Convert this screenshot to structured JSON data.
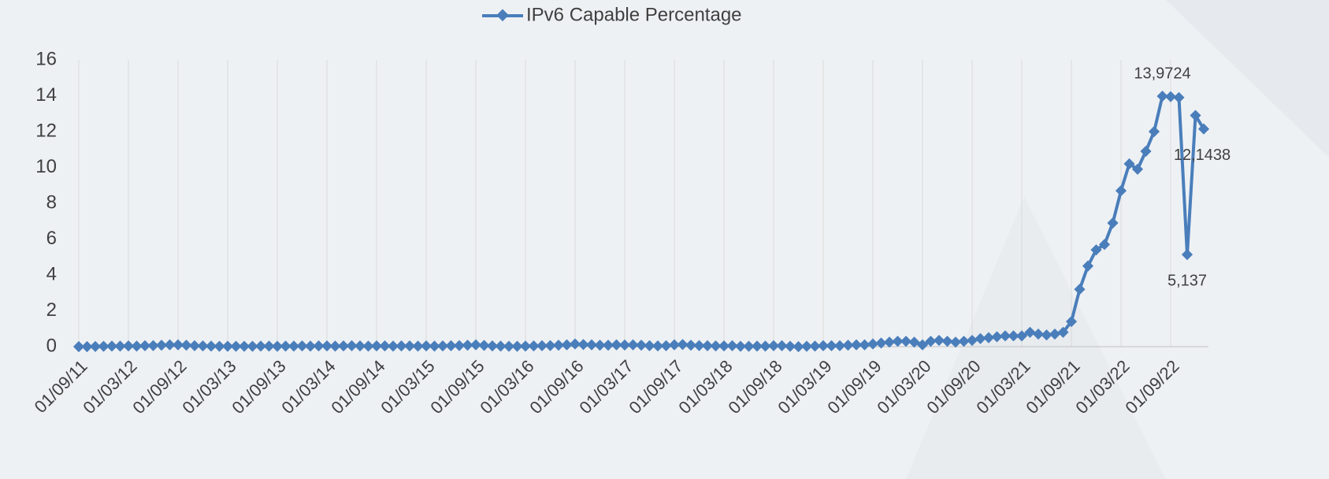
{
  "chart_data": {
    "type": "line",
    "categories": [
      "01/09/11",
      null,
      null,
      null,
      null,
      null,
      "01/03/12",
      null,
      null,
      null,
      null,
      null,
      "01/09/12",
      null,
      null,
      null,
      null,
      null,
      "01/03/13",
      null,
      null,
      null,
      null,
      null,
      "01/09/13",
      null,
      null,
      null,
      null,
      null,
      "01/03/14",
      null,
      null,
      null,
      null,
      null,
      "01/09/14",
      null,
      null,
      null,
      null,
      null,
      "01/03/15",
      null,
      null,
      null,
      null,
      null,
      "01/09/15",
      null,
      null,
      null,
      null,
      null,
      "01/03/16",
      null,
      null,
      null,
      null,
      null,
      "01/09/16",
      null,
      null,
      null,
      null,
      null,
      "01/03/17",
      null,
      null,
      null,
      null,
      null,
      "01/09/17",
      null,
      null,
      null,
      null,
      null,
      "01/03/18",
      null,
      null,
      null,
      null,
      null,
      "01/09/18",
      null,
      null,
      null,
      null,
      null,
      "01/03/19",
      null,
      null,
      null,
      null,
      null,
      "01/09/19",
      null,
      null,
      null,
      null,
      null,
      "01/03/20",
      null,
      null,
      null,
      null,
      null,
      "01/09/20",
      null,
      null,
      null,
      null,
      null,
      "01/03/21",
      null,
      null,
      null,
      null,
      null,
      "01/09/21",
      null,
      null,
      null,
      null,
      null,
      "01/03/22",
      null,
      null,
      null,
      null,
      null,
      "01/09/22",
      null,
      null,
      null,
      null
    ],
    "series": [
      {
        "name": "IPv6 Capable Percentage",
        "color": "#4a7ebb",
        "values": [
          0,
          0,
          0.01,
          0.02,
          0.03,
          0.03,
          0.04,
          0.03,
          0.05,
          0.06,
          0.08,
          0.1,
          0.1,
          0.08,
          0.05,
          0.04,
          0.03,
          0.02,
          0.02,
          0.02,
          0.02,
          0.02,
          0.03,
          0.03,
          0.02,
          0.03,
          0.03,
          0.04,
          0.03,
          0.04,
          0.04,
          0.03,
          0.04,
          0.05,
          0.04,
          0.03,
          0.04,
          0.04,
          0.03,
          0.04,
          0.04,
          0.03,
          0.04,
          0.03,
          0.04,
          0.05,
          0.06,
          0.08,
          0.1,
          0.07,
          0.04,
          0.03,
          0.02,
          0.02,
          0.03,
          0.04,
          0.05,
          0.06,
          0.08,
          0.1,
          0.15,
          0.12,
          0.1,
          0.08,
          0.08,
          0.1,
          0.09,
          0.1,
          0.08,
          0.05,
          0.04,
          0.05,
          0.1,
          0.12,
          0.08,
          0.06,
          0.05,
          0.04,
          0.04,
          0.05,
          0.02,
          0.02,
          0.03,
          0.03,
          0.05,
          0.05,
          0.02,
          0,
          0.02,
          0.03,
          0.05,
          0.05,
          0.05,
          0.08,
          0.1,
          0.1,
          0.15,
          0.2,
          0.25,
          0.3,
          0.3,
          0.25,
          0.1,
          0.3,
          0.35,
          0.3,
          0.25,
          0.3,
          0.35,
          0.45,
          0.5,
          0.55,
          0.6,
          0.6,
          0.6,
          0.8,
          0.7,
          0.65,
          0.7,
          0.8,
          1.4,
          3.2,
          4.5,
          5.4,
          5.7,
          6.9,
          8.7,
          10.2,
          9.9,
          10.9,
          12.0,
          13.9724,
          13.95,
          13.9,
          5.137,
          12.9,
          12.1438
        ],
        "value_labels": [
          null,
          null,
          null,
          null,
          null,
          null,
          null,
          null,
          null,
          null,
          null,
          null,
          null,
          null,
          null,
          null,
          null,
          null,
          null,
          null,
          null,
          null,
          null,
          null,
          null,
          null,
          null,
          null,
          null,
          null,
          null,
          null,
          null,
          null,
          null,
          null,
          null,
          null,
          null,
          null,
          null,
          null,
          null,
          null,
          null,
          null,
          null,
          null,
          null,
          null,
          null,
          null,
          null,
          null,
          null,
          null,
          null,
          null,
          null,
          null,
          null,
          null,
          null,
          null,
          null,
          null,
          null,
          null,
          null,
          null,
          null,
          null,
          null,
          null,
          null,
          null,
          null,
          null,
          null,
          null,
          null,
          null,
          null,
          null,
          null,
          null,
          null,
          null,
          null,
          null,
          null,
          null,
          null,
          null,
          null,
          null,
          null,
          null,
          null,
          null,
          null,
          null,
          null,
          null,
          null,
          null,
          null,
          null,
          null,
          null,
          null,
          null,
          null,
          null,
          null,
          null,
          null,
          null,
          null,
          null,
          null,
          null,
          null,
          null,
          null,
          null,
          null,
          null,
          null,
          null,
          null,
          "13,9724",
          null,
          null,
          "5,137",
          null,
          "12,1438"
        ]
      }
    ],
    "ylim": [
      0,
      16
    ],
    "yticks": [
      0,
      2,
      4,
      6,
      8,
      10,
      12,
      14,
      16
    ],
    "grid": true,
    "legend": "top"
  }
}
